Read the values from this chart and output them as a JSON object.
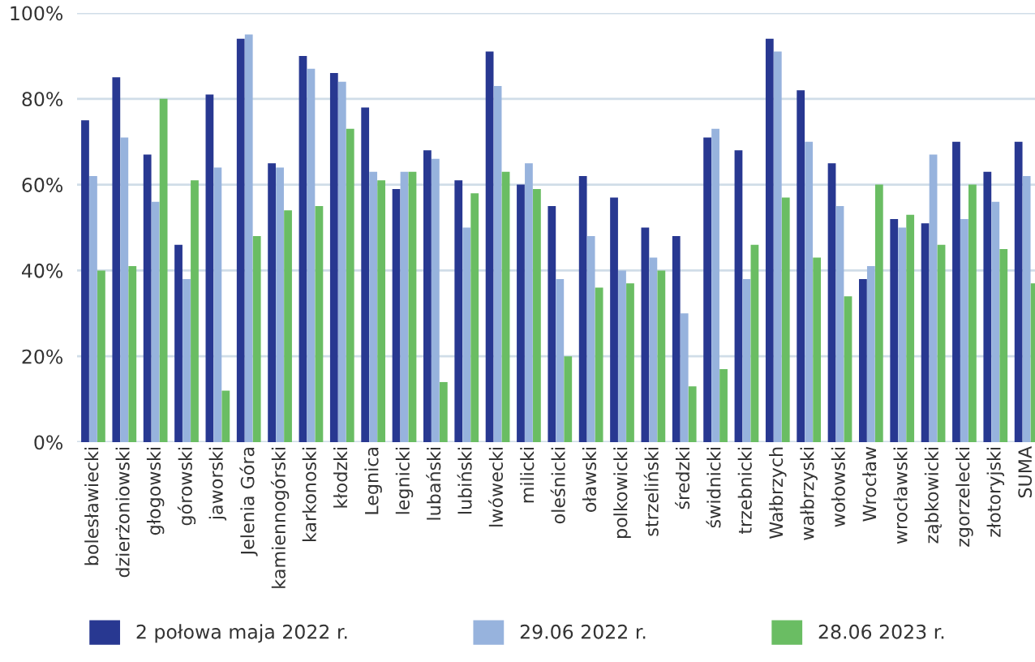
{
  "chart_data": {
    "type": "bar",
    "categories": [
      "bolesławiecki",
      "dzierżoniowski",
      "głogowski",
      "górowski",
      "jaworski",
      "Jelenia Góra",
      "kamiennogórski",
      "karkonoski",
      "kłodzki",
      "Legnica",
      "legnicki",
      "lubański",
      "lubiński",
      "lwówecki",
      "milicki",
      "oleśnicki",
      "oławski",
      "polkowicki",
      "strzeliński",
      "średzki",
      "świdnicki",
      "trzebnicki",
      "Wałbrzych",
      "wałbrzyski",
      "wołowski",
      "Wrocław",
      "wrocławski",
      "ząbkowicki",
      "zgorzelecki",
      "złotoryjski",
      "SUMA"
    ],
    "series": [
      {
        "name": "2 połowa maja 2022 r.",
        "color": "#283891",
        "values": [
          75,
          85,
          67,
          46,
          81,
          94,
          65,
          90,
          86,
          78,
          59,
          68,
          61,
          91,
          60,
          55,
          62,
          57,
          50,
          48,
          71,
          68,
          94,
          82,
          65,
          38,
          52,
          51,
          70,
          63,
          70
        ]
      },
      {
        "name": "29.06 2022 r.",
        "color": "#97b3dd",
        "values": [
          62,
          71,
          56,
          38,
          64,
          95,
          64,
          87,
          84,
          63,
          63,
          66,
          50,
          83,
          65,
          38,
          48,
          40,
          43,
          30,
          73,
          38,
          91,
          70,
          55,
          41,
          50,
          67,
          52,
          56,
          62
        ]
      },
      {
        "name": "28.06 2023 r.",
        "color": "#6abd63",
        "values": [
          40,
          41,
          80,
          61,
          12,
          48,
          54,
          55,
          73,
          61,
          63,
          14,
          58,
          63,
          59,
          20,
          36,
          37,
          40,
          13,
          17,
          46,
          57,
          43,
          34,
          60,
          53,
          46,
          60,
          45,
          37
        ]
      }
    ],
    "ylim": [
      0,
      100
    ],
    "yticks": [
      {
        "value": 0,
        "label": "0%"
      },
      {
        "value": 20,
        "label": "20%"
      },
      {
        "value": 40,
        "label": "40%"
      },
      {
        "value": 60,
        "label": "60%"
      },
      {
        "value": 80,
        "label": "80%"
      },
      {
        "value": 100,
        "label": "100%"
      }
    ],
    "grid": "y",
    "legend": "bottom"
  }
}
